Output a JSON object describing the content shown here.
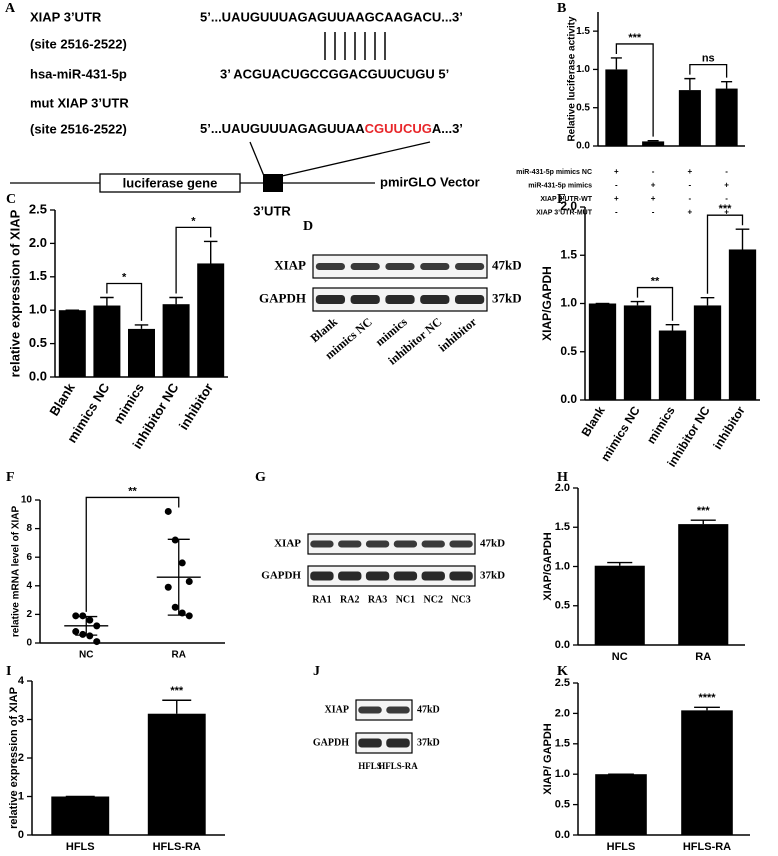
{
  "diagram": {
    "label": "A",
    "wt_name": "XIAP 3’UTR",
    "wt_site": "(site 2516-2522)",
    "wt_seq": "5’...UAUGUUUAGAGUUAAGCAAGACU...3’",
    "mirna_name": "hsa-miR-431-5p",
    "mirna_seq": "3’ ACGUACUGCCGGACGUUCUGU 5’",
    "mut_name": "mut XIAP  3’UTR",
    "mut_site": "(site 2516-2522)",
    "mut_seq": [
      "5’...UAUGUUUAGAGUUAA",
      "CGUUCUG",
      "A...3’"
    ],
    "mut_color": "#e8262a",
    "gene_box": "luciferase gene",
    "vector": "pmirGLO Vector",
    "utr": "3’UTR"
  },
  "chart_data": [
    {
      "type": "bar",
      "label": "B",
      "y_label": "Relative luciferase activity",
      "color": "#000000",
      "categories": [
        null,
        null,
        null,
        null
      ],
      "values": [
        1.0,
        0.06,
        0.73,
        0.75
      ],
      "errors": [
        0.15,
        0.01,
        0.15,
        0.09
      ],
      "ylim": [
        0,
        1.75
      ],
      "yticks": [
        {
          "value": 0,
          "label": "0.0"
        },
        {
          "value": 0.5,
          "label": "0.5"
        },
        {
          "value": 1,
          "label": "1.0"
        },
        {
          "value": 1.5,
          "label": "1.5"
        }
      ],
      "annotations": [
        {
          "text": "***",
          "pair": [
            0,
            1
          ]
        },
        {
          "text": "ns",
          "pair": [
            2,
            3
          ]
        }
      ],
      "conditions": [
        {
          "name": "miR-431-5p mimics NC",
          "cells": [
            "+",
            "-",
            "+",
            "-"
          ]
        },
        {
          "name": "miR-431-5p mimics",
          "cells": [
            "-",
            "+",
            "-",
            "+"
          ]
        },
        {
          "name": "XIAP 3’UTR-WT",
          "cells": [
            "+",
            "+",
            "-",
            "-"
          ]
        },
        {
          "name": "XIAP 3’UTR-MUT",
          "cells": [
            "-",
            "-",
            "+",
            "+"
          ]
        }
      ]
    },
    {
      "type": "bar",
      "label": "C",
      "y_label": "relative expression of XIAP",
      "color": "#000000",
      "categories": [
        "Blank",
        "mimics NC",
        "mimics",
        "inhibitor NC",
        "inhibitor"
      ],
      "values": [
        1.0,
        1.07,
        0.72,
        1.09,
        1.7
      ],
      "errors": [
        0,
        0.12,
        0.06,
        0.1,
        0.33
      ],
      "ylim": [
        0,
        2.5
      ],
      "yticks": [
        {
          "value": 0,
          "label": "0.0"
        },
        {
          "value": 0.5,
          "label": "0.5"
        },
        {
          "value": 1,
          "label": "1.0"
        },
        {
          "value": 1.5,
          "label": "1.5"
        },
        {
          "value": 2,
          "label": "2.0"
        },
        {
          "value": 2.5,
          "label": "2.5"
        }
      ],
      "annotations": [
        {
          "text": "*",
          "pair": [
            1,
            2
          ]
        },
        {
          "text": "*",
          "pair": [
            3,
            4
          ]
        }
      ]
    },
    {
      "type": "bar",
      "label": "E",
      "y_label": "XIAP/GAPDH",
      "color": "#000000",
      "categories": [
        "Blank",
        "mimics NC",
        "mimics",
        "inhibitor NC",
        "inhibitor"
      ],
      "values": [
        1.0,
        0.98,
        0.72,
        0.98,
        1.56
      ],
      "errors": [
        0,
        0.04,
        0.06,
        0.08,
        0.21
      ],
      "ylim": [
        0,
        2
      ],
      "yticks": [
        {
          "value": 0,
          "label": "0.0"
        },
        {
          "value": 0.5,
          "label": "0.5"
        },
        {
          "value": 1,
          "label": "1.0"
        },
        {
          "value": 1.5,
          "label": "1.5"
        },
        {
          "value": 2,
          "label": "2.0"
        }
      ],
      "annotations": [
        {
          "text": "**",
          "pair": [
            1,
            2
          ]
        },
        {
          "text": "***",
          "pair": [
            3,
            4
          ]
        }
      ]
    },
    {
      "type": "dot",
      "label": "F",
      "y_label": "relative mRNA level of XIAP",
      "color": "#000000",
      "categories": [
        "NC",
        "RA"
      ],
      "groups": [
        [
          1.9,
          1.9,
          1.6,
          1.2,
          0.8,
          0.6,
          0.5,
          0.1
        ],
        [
          9.2,
          7.2,
          5.6,
          4.3,
          3.9,
          2.5,
          2.1,
          1.9
        ]
      ],
      "means": [
        1.2,
        4.6
      ],
      "sds": [
        0.65,
        2.65
      ],
      "ylim": [
        0,
        10
      ],
      "yticks": [
        0,
        2,
        4,
        6,
        8,
        10
      ],
      "annotations": [
        {
          "text": "**",
          "pair": [
            0,
            1
          ]
        }
      ]
    },
    {
      "type": "bar",
      "label": "H",
      "y_label": "XIAP/GAPDH",
      "color": "#000000",
      "categories": [
        "NC",
        "RA"
      ],
      "values": [
        1.01,
        1.54
      ],
      "errors": [
        0.04,
        0.05
      ],
      "ylim": [
        0,
        2
      ],
      "yticks": [
        {
          "value": 0,
          "label": "0.0"
        },
        {
          "value": 0.5,
          "label": "0.5"
        },
        {
          "value": 1,
          "label": "1.0"
        },
        {
          "value": 1.5,
          "label": "1.5"
        },
        {
          "value": 2,
          "label": "2.0"
        }
      ],
      "value_annotations": [
        null,
        "***"
      ]
    },
    {
      "type": "bar",
      "label": "I",
      "y_label": "relative expression of XIAP",
      "color": "#000000",
      "categories": [
        "HFLS",
        "HFLS-RA"
      ],
      "values": [
        1.0,
        3.15
      ],
      "errors": [
        0,
        0.35
      ],
      "ylim": [
        0,
        4
      ],
      "yticks": [
        0,
        1,
        2,
        3,
        4
      ],
      "value_annotations": [
        null,
        "***"
      ]
    },
    {
      "type": "bar",
      "label": "K",
      "y_label": "XIAP/ GAPDH",
      "color": "#000000",
      "categories": [
        "HFLS",
        "HFLS-RA"
      ],
      "values": [
        1.0,
        2.05
      ],
      "errors": [
        0,
        0.05
      ],
      "ylim": [
        0,
        2.5
      ],
      "yticks": [
        {
          "value": 0,
          "label": "0.0"
        },
        {
          "value": 0.5,
          "label": "0.5"
        },
        {
          "value": 1,
          "label": "1.0"
        },
        {
          "value": 1.5,
          "label": "1.5"
        },
        {
          "value": 2,
          "label": "2.0"
        },
        {
          "value": 2.5,
          "label": "2.5"
        }
      ],
      "value_annotations": [
        null,
        "****"
      ]
    }
  ],
  "blots": [
    {
      "label": "D",
      "rows": [
        {
          "name": "XIAP",
          "size": "47kD"
        },
        {
          "name": "GAPDH",
          "size": "37kD"
        }
      ],
      "lanes": [
        "Blank",
        "mimics NC",
        "mimics",
        "inhibitor NC",
        "inhibitor"
      ]
    },
    {
      "label": "G",
      "rows": [
        {
          "name": "XIAP",
          "size": "47kD"
        },
        {
          "name": "GAPDH",
          "size": "37kD"
        }
      ],
      "lanes": [
        "RA1",
        "RA2",
        "RA3",
        "NC1",
        "NC2",
        "NC3"
      ]
    },
    {
      "label": "J",
      "rows": [
        {
          "name": "XIAP",
          "size": "47kD"
        },
        {
          "name": "GAPDH",
          "size": "37kD"
        }
      ],
      "lanes": [
        "HFLS",
        "HFLS-RA"
      ]
    }
  ]
}
